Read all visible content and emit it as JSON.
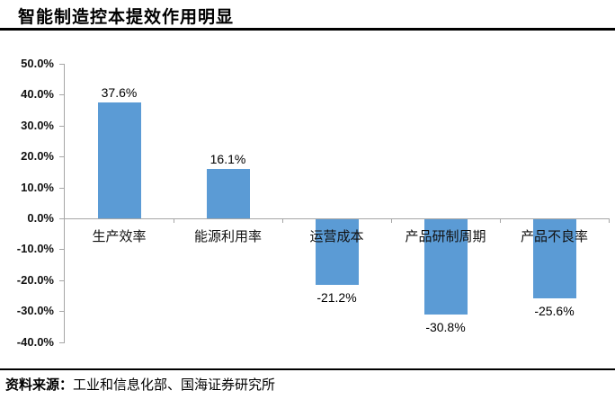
{
  "header": {
    "title": "智能制造控本提效作用明显"
  },
  "footer": {
    "source_label": "资料来源：",
    "source_text": "工业和信息化部、国海证券研究所"
  },
  "colors": {
    "bar": "#5b9bd5",
    "axis": "#a6a6a6",
    "text": "#000000",
    "rule": "#000000"
  },
  "chart_data": {
    "type": "bar",
    "title": "智能制造控本提效作用明显",
    "categories": [
      "生产效率",
      "能源利用率",
      "运营成本",
      "产品研制周期",
      "产品不良率"
    ],
    "values": [
      37.6,
      16.1,
      -21.2,
      -30.8,
      -25.6
    ],
    "value_labels": [
      "37.6%",
      "16.1%",
      "-21.2%",
      "-30.8%",
      "-25.6%"
    ],
    "xlabel": "",
    "ylabel": "",
    "ylim": [
      -40,
      50
    ],
    "ytick_step": 10,
    "ytick_labels": [
      "50.0%",
      "40.0%",
      "30.0%",
      "20.0%",
      "10.0%",
      "0.0%",
      "-10.0%",
      "-20.0%",
      "-30.0%",
      "-40.0%"
    ],
    "grid": false,
    "legend": false,
    "bar_color": "#5b9bd5"
  }
}
